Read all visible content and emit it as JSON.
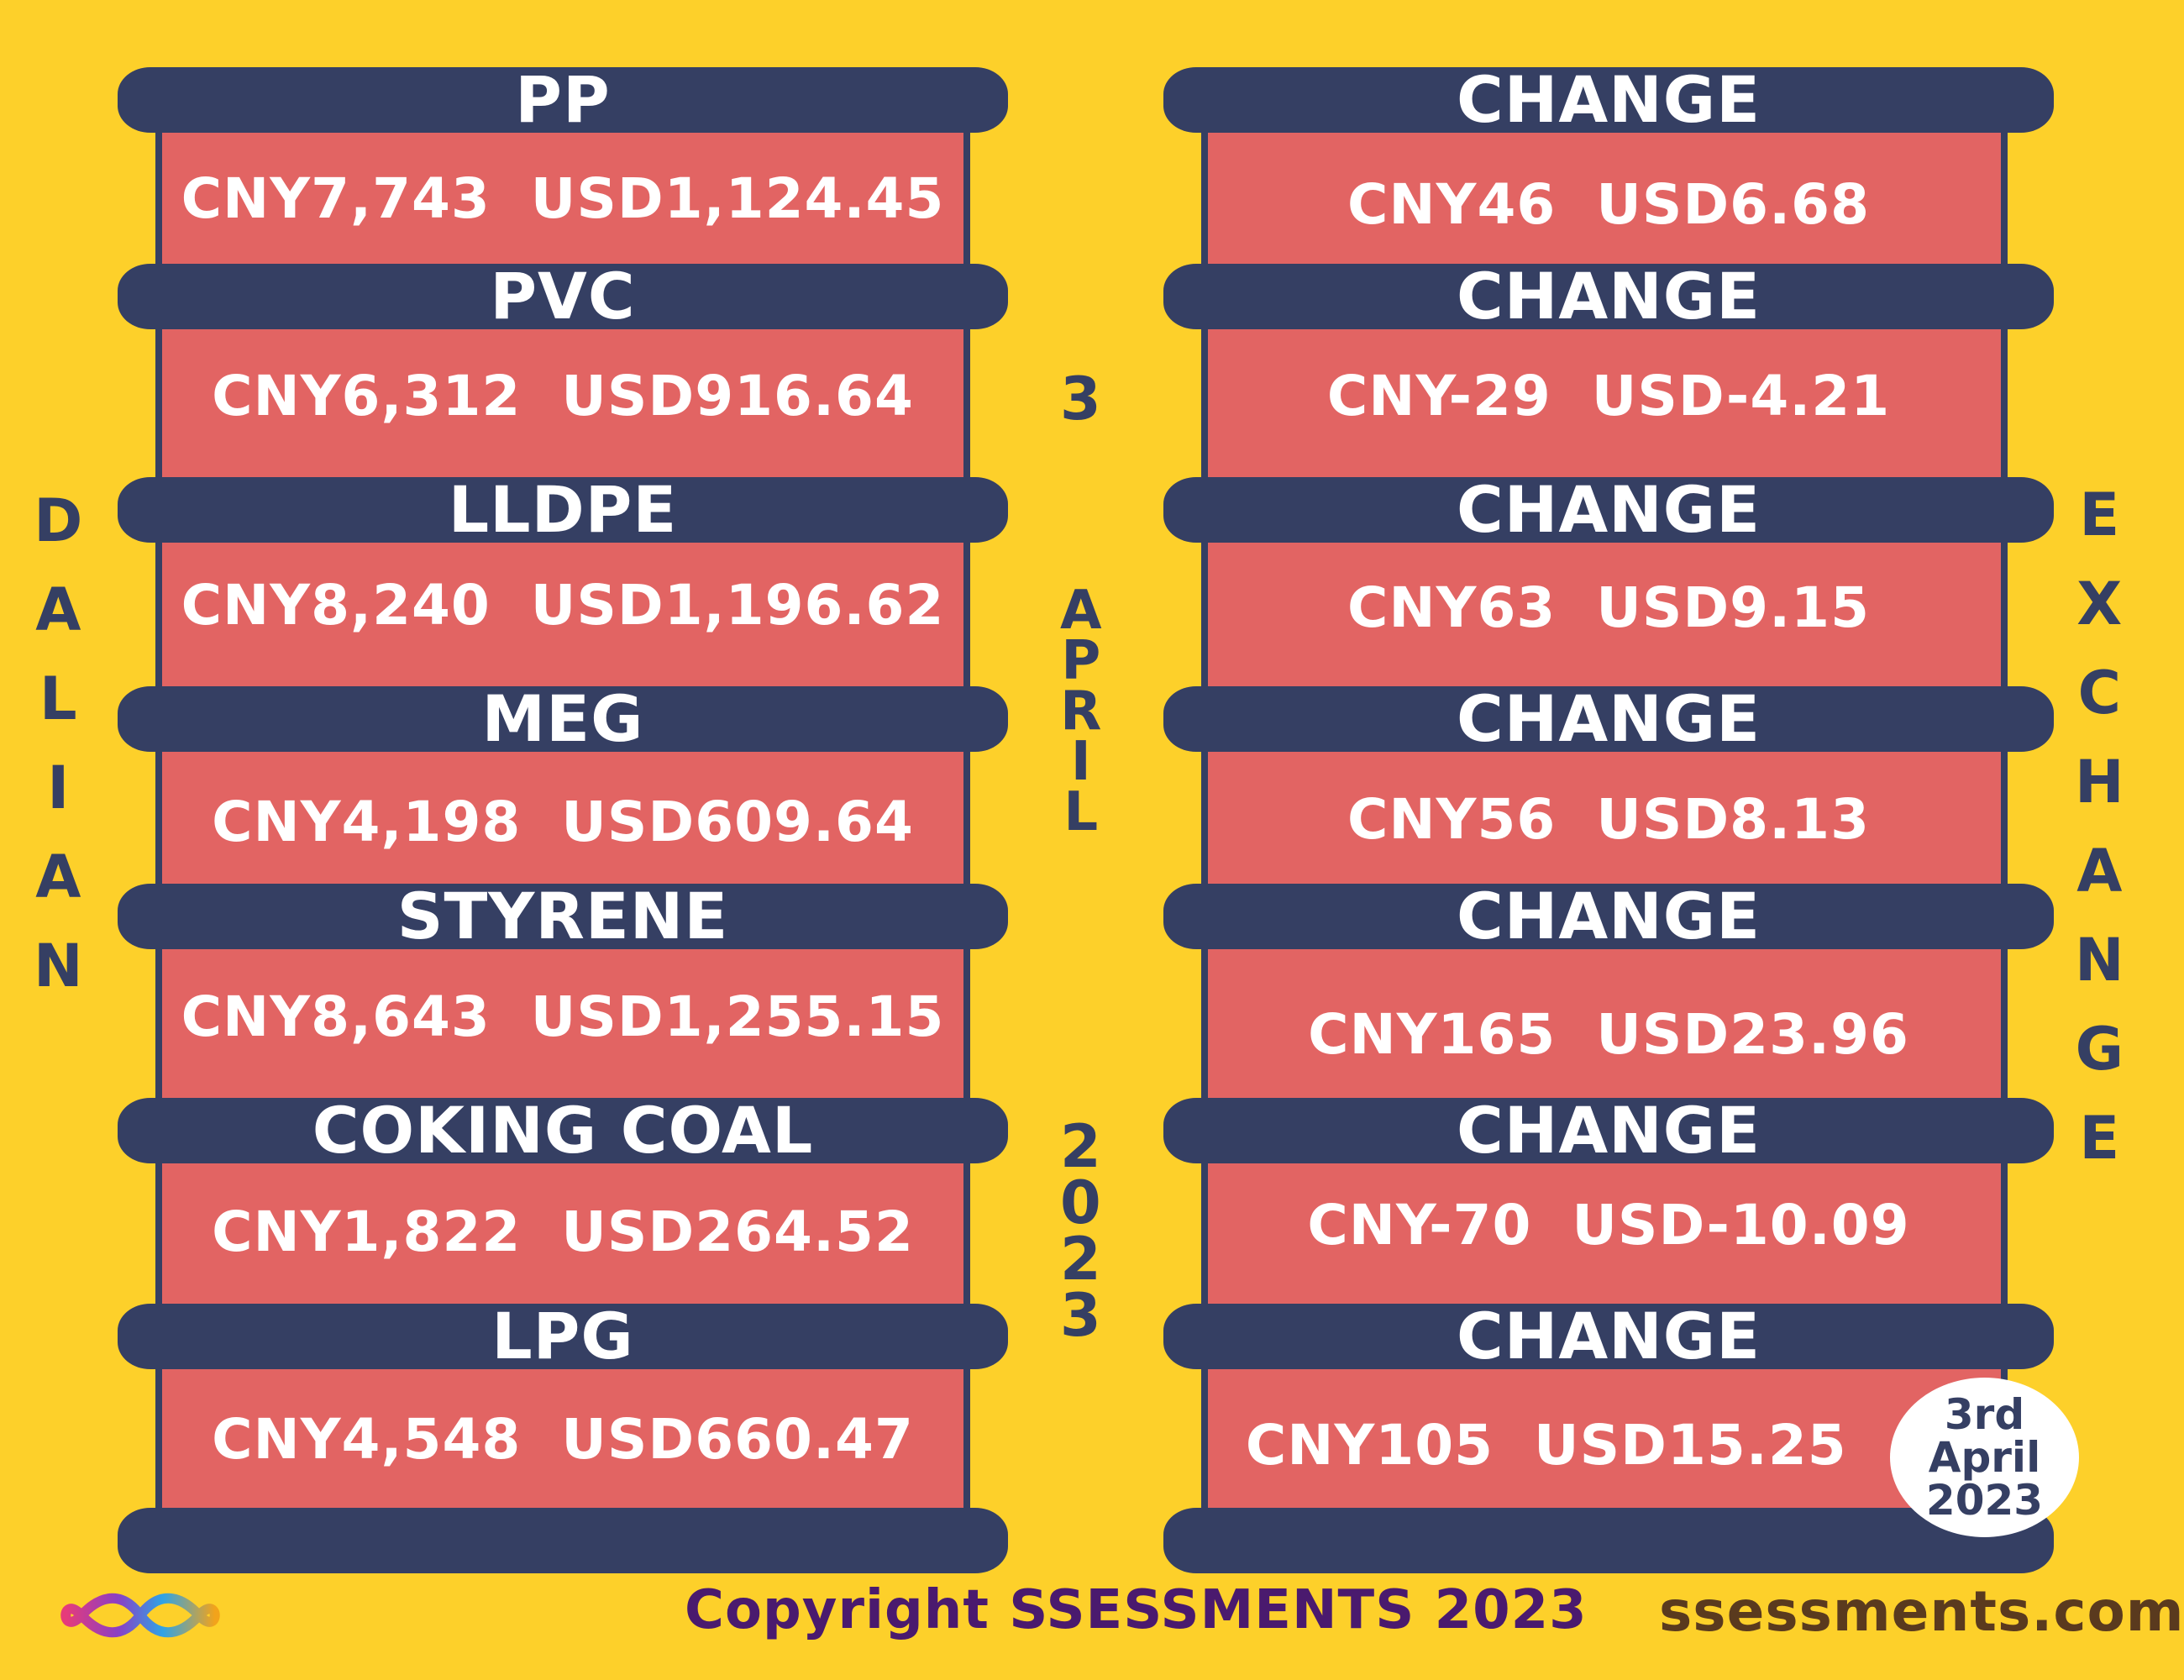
{
  "left_panel": {
    "rows": [
      {
        "name": "PP",
        "value": "CNY7,743  USD1,124.45"
      },
      {
        "name": "PVC",
        "value": "CNY6,312  USD916.64"
      },
      {
        "name": "LLDPE",
        "value": "CNY8,240  USD1,196.62"
      },
      {
        "name": "MEG",
        "value": "CNY4,198  USD609.64"
      },
      {
        "name": "STYRENE",
        "value": "CNY8,643  USD1,255.15"
      },
      {
        "name": "COKING COAL",
        "value": "CNY1,822  USD264.52"
      },
      {
        "name": "LPG",
        "value": "CNY4,548  USD660.47"
      }
    ]
  },
  "right_panel": {
    "rows": [
      {
        "name": "CHANGE",
        "value": "CNY46  USD6.68"
      },
      {
        "name": "CHANGE",
        "value": "CNY-29  USD-4.21"
      },
      {
        "name": "CHANGE",
        "value": "CNY63  USD9.15"
      },
      {
        "name": "CHANGE",
        "value": "CNY56  USD8.13"
      },
      {
        "name": "CHANGE",
        "value": "CNY165  USD23.96"
      },
      {
        "name": "CHANGE",
        "value": "CNY-70  USD-10.09"
      },
      {
        "name": "CHANGE",
        "value": "CNY105  USD15.25"
      }
    ]
  },
  "side_labels": {
    "left": "DALIAN",
    "right": "EXCHANGE"
  },
  "center_date": {
    "day": "3",
    "month": "APRIL",
    "year": "2023"
  },
  "date_badge": {
    "line1": "3rd",
    "line2": "April",
    "line3": "2023"
  },
  "footer": {
    "copyright": "Copyright SSESSMENTS 2023",
    "website": "ssessments.com"
  },
  "colors": {
    "background": "#FDD02A",
    "bar": "#353F63",
    "panel": "#E26463",
    "text": "#FFFFFF"
  },
  "icons": [
    "infinity-logo-icon"
  ]
}
